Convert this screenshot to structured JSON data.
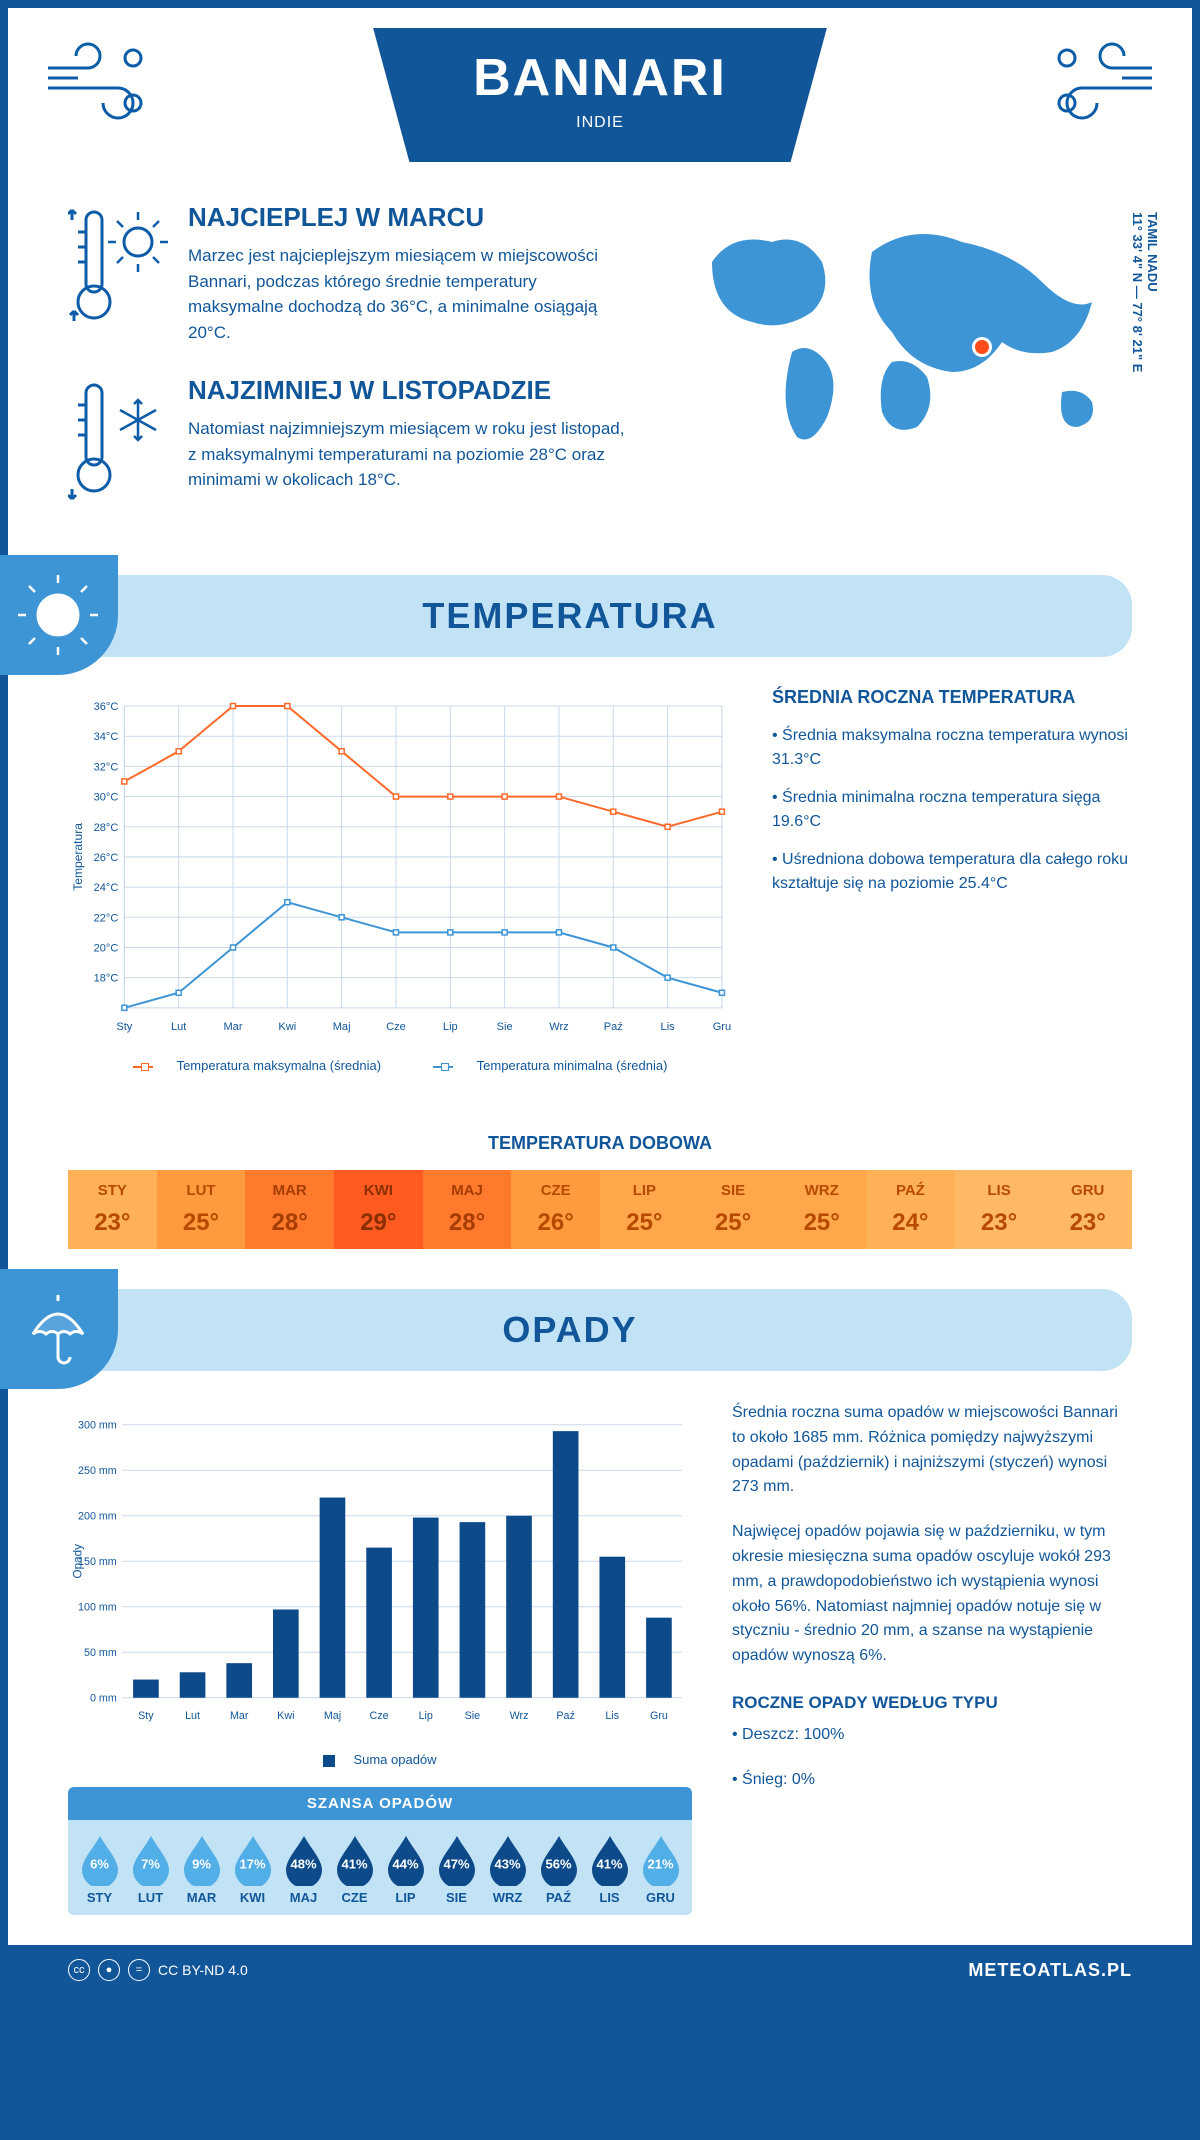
{
  "colors": {
    "brand": "#115699",
    "brand_light": "#c2e2f6",
    "brand_mid": "#3d95d6",
    "orange": "#ff6a2b",
    "blue_line": "#3d95d6",
    "grid": "#c9d9ea"
  },
  "header": {
    "title": "BANNARI",
    "subtitle": "INDIE"
  },
  "intro": {
    "warm": {
      "title": "NAJCIEPLEJ W MARCU",
      "text": "Marzec jest najcieplejszym miesiącem w miejscowości Bannari, podczas którego średnie temperatury maksymalne dochodzą do 36°C, a minimalne osiągają 20°C."
    },
    "cold": {
      "title": "NAJZIMNIEJ W LISTOPADZIE",
      "text": "Natomiast najzimniejszym miesiącem w roku jest listopad, z maksymalnymi temperaturami na poziomie 28°C oraz minimami w okolicach 18°C."
    },
    "coords": "11° 33' 4\" N — 77° 8' 21\" E",
    "region": "TAMIL NADU"
  },
  "sections": {
    "temp_title": "TEMPERATURA",
    "opady_title": "OPADY"
  },
  "months": [
    "Sty",
    "Lut",
    "Mar",
    "Kwi",
    "Maj",
    "Cze",
    "Lip",
    "Sie",
    "Wrz",
    "Paź",
    "Lis",
    "Gru"
  ],
  "months_upper": [
    "STY",
    "LUT",
    "MAR",
    "KWI",
    "MAJ",
    "CZE",
    "LIP",
    "SIE",
    "WRZ",
    "PAŹ",
    "LIS",
    "GRU"
  ],
  "temp_chart": {
    "type": "line",
    "ylabel": "Temperatura",
    "ylim": [
      16,
      36
    ],
    "ytick_step": 2,
    "max_series": [
      31,
      33,
      36,
      36,
      33,
      30,
      30,
      30,
      30,
      29,
      28,
      29
    ],
    "min_series": [
      16,
      17,
      20,
      23,
      22,
      21,
      21,
      21,
      21,
      20,
      18,
      17
    ],
    "max_color": "#ff6a2b",
    "min_color": "#3d95d6",
    "max_label": "Temperatura maksymalna (średnia)",
    "min_label": "Temperatura minimalna (średnia)",
    "grid_color": "#c9d9ea",
    "background": "#ffffff",
    "line_width": 2,
    "marker": "square",
    "marker_size": 5
  },
  "temp_side": {
    "heading": "ŚREDNIA ROCZNA TEMPERATURA",
    "b1": "• Średnia maksymalna roczna temperatura wynosi 31.3°C",
    "b2": "• Średnia minimalna roczna temperatura sięga 19.6°C",
    "b3": "• Uśredniona dobowa temperatura dla całego roku kształtuje się na poziomie 25.4°C"
  },
  "daily_temp": {
    "title": "TEMPERATURA DOBOWA",
    "values": [
      "23°",
      "25°",
      "28°",
      "29°",
      "28°",
      "26°",
      "25°",
      "25°",
      "25°",
      "24°",
      "23°",
      "23°"
    ],
    "bg_colors": [
      "#ffb157",
      "#ff9a3e",
      "#ff7a2d",
      "#ff5a1f",
      "#ff7a2d",
      "#ff9a3e",
      "#ffa74a",
      "#ffa74a",
      "#ffa74a",
      "#ffb157",
      "#ffb966",
      "#ffb966"
    ],
    "text_colors": [
      "#b84a00",
      "#b84a00",
      "#a53d00",
      "#8a2f00",
      "#a53d00",
      "#b84a00",
      "#b84a00",
      "#b84a00",
      "#b84a00",
      "#b84a00",
      "#b84a00",
      "#b84a00"
    ]
  },
  "opady_chart": {
    "type": "bar",
    "ylabel": "Opady",
    "ylim": [
      0,
      300
    ],
    "ytick_step": 50,
    "values": [
      20,
      28,
      38,
      97,
      220,
      165,
      198,
      193,
      200,
      293,
      155,
      88
    ],
    "bar_color": "#0d4a8a",
    "grid_color": "#c9d9ea",
    "legend": "Suma opadów",
    "bar_width": 0.55
  },
  "opady_text": {
    "p1": "Średnia roczna suma opadów w miejscowości Bannari to około 1685 mm. Różnica pomiędzy najwyższymi opadami (październik) i najniższymi (styczeń) wynosi 273 mm.",
    "p2": "Najwięcej opadów pojawia się w październiku, w tym okresie miesięczna suma opadów oscyluje wokół 293 mm, a prawdopodobieństwo ich wystąpienia wynosi około 56%. Natomiast najmniej opadów notuje się w styczniu - średnio 20 mm, a szanse na wystąpienie opadów wynoszą 6%.",
    "type_heading": "ROCZNE OPADY WEDŁUG TYPU",
    "type_rain": "• Deszcz: 100%",
    "type_snow": "• Śnieg: 0%"
  },
  "chance": {
    "title": "SZANSA OPADÓW",
    "values": [
      6,
      7,
      9,
      17,
      48,
      41,
      44,
      47,
      43,
      56,
      41,
      21
    ],
    "drop_light": "#51aee6",
    "drop_dark": "#0d4a8a",
    "threshold_dark": 30
  },
  "footer": {
    "license": "CC BY-ND 4.0",
    "brand": "METEOATLAS.PL"
  }
}
